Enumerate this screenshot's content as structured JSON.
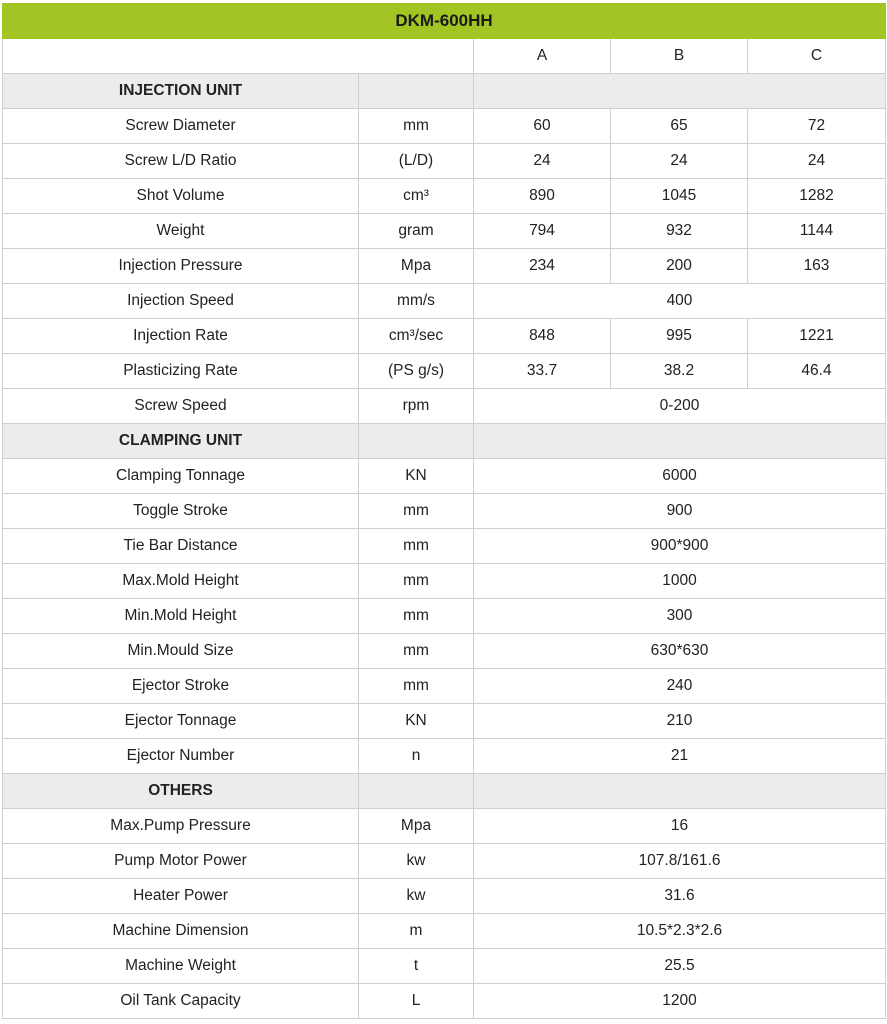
{
  "title": "DKM-600HH",
  "columns": [
    "A",
    "B",
    "C"
  ],
  "accent_color": "#a3c523",
  "sections": [
    {
      "label": "INJECTION UNIT",
      "rows": [
        {
          "name": "Screw Diameter",
          "unit": "mm",
          "values": [
            "60",
            "65",
            "72"
          ]
        },
        {
          "name": "Screw L/D Ratio",
          "unit": "(L/D)",
          "values": [
            "24",
            "24",
            "24"
          ]
        },
        {
          "name": "Shot Volume",
          "unit": "cm³",
          "values": [
            "890",
            "1045",
            "1282"
          ]
        },
        {
          "name": "Weight",
          "unit": "gram",
          "values": [
            "794",
            "932",
            "1144"
          ]
        },
        {
          "name": "Injection Pressure",
          "unit": "Mpa",
          "values": [
            "234",
            "200",
            "163"
          ]
        },
        {
          "name": "Injection Speed",
          "unit": "mm/s",
          "values": [
            "400"
          ]
        },
        {
          "name": "Injection Rate",
          "unit": "cm³/sec",
          "values": [
            "848",
            "995",
            "1221"
          ]
        },
        {
          "name": "Plasticizing Rate",
          "unit": "(PS g/s)",
          "values": [
            "33.7",
            "38.2",
            "46.4"
          ]
        },
        {
          "name": "Screw Speed",
          "unit": "rpm",
          "values": [
            "0-200"
          ]
        }
      ]
    },
    {
      "label": "CLAMPING UNIT",
      "rows": [
        {
          "name": "Clamping Tonnage",
          "unit": "KN",
          "values": [
            "6000"
          ]
        },
        {
          "name": "Toggle Stroke",
          "unit": "mm",
          "values": [
            "900"
          ]
        },
        {
          "name": "Tie Bar Distance",
          "unit": "mm",
          "values": [
            "900*900"
          ]
        },
        {
          "name": "Max.Mold Height",
          "unit": "mm",
          "values": [
            "1000"
          ]
        },
        {
          "name": "Min.Mold Height",
          "unit": "mm",
          "values": [
            "300"
          ]
        },
        {
          "name": "Min.Mould Size",
          "unit": "mm",
          "values": [
            "630*630"
          ]
        },
        {
          "name": "Ejector Stroke",
          "unit": "mm",
          "values": [
            "240"
          ]
        },
        {
          "name": "Ejector Tonnage",
          "unit": "KN",
          "values": [
            "210"
          ]
        },
        {
          "name": "Ejector Number",
          "unit": "n",
          "values": [
            "21"
          ]
        }
      ]
    },
    {
      "label": "OTHERS",
      "rows": [
        {
          "name": "Max.Pump Pressure",
          "unit": "Mpa",
          "values": [
            "16"
          ]
        },
        {
          "name": "Pump Motor Power",
          "unit": "kw",
          "values": [
            "107.8/161.6"
          ]
        },
        {
          "name": "Heater Power",
          "unit": "kw",
          "values": [
            "31.6"
          ]
        },
        {
          "name": "Machine Dimension",
          "unit": "m",
          "values": [
            "10.5*2.3*2.6"
          ]
        },
        {
          "name": "Machine Weight",
          "unit": "t",
          "values": [
            "25.5"
          ]
        },
        {
          "name": "Oil Tank Capacity",
          "unit": "L",
          "values": [
            "1200"
          ]
        }
      ]
    }
  ]
}
